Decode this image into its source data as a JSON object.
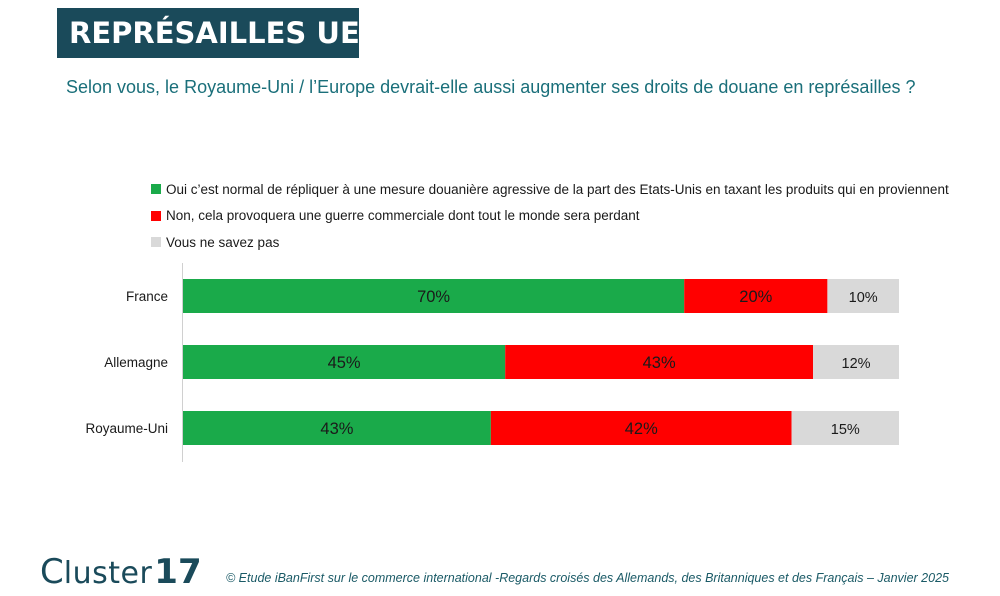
{
  "header": {
    "title": "REPRÉSAILLES UE",
    "question": "Selon vous, le Royaume-Uni / l’Europe devrait-elle aussi augmenter ses droits de douane en représailles ?"
  },
  "colors": {
    "title_bg": "#1a4a5a",
    "question_text": "#1a6f7a",
    "yes": "#1aaa4a",
    "no": "#ff0000",
    "dont_know": "#d9d9d9"
  },
  "chart_data": {
    "type": "bar",
    "orientation": "horizontal",
    "stacked": true,
    "categories": [
      "France",
      "Allemagne",
      "Royaume-Uni"
    ],
    "series": [
      {
        "name": "Oui c’est normal de répliquer à une mesure douanière agressive de la part des Etats-Unis en taxant les produits qui en proviennent",
        "values": [
          70,
          45,
          43
        ],
        "labels": [
          "70%",
          "45%",
          "43%"
        ],
        "color": "#1aaa4a"
      },
      {
        "name": "Non, cela provoquera une guerre commerciale dont tout le monde sera perdant",
        "values": [
          20,
          43,
          42
        ],
        "labels": [
          "20%",
          "43%",
          "42%"
        ],
        "color": "#ff0000"
      },
      {
        "name": "Vous ne savez pas",
        "values": [
          10,
          12,
          15
        ],
        "labels": [
          "10%",
          "12%",
          "15%"
        ],
        "color": "#d9d9d9"
      }
    ],
    "legend_position": "top",
    "grid": false
  },
  "footer": {
    "logo_word": "luster",
    "logo_letter": "C",
    "logo_number": "17",
    "source": "© Etude iBanFirst sur le commerce international -Regards croisés des Allemands, des Britanniques et des Français – Janvier 2025"
  }
}
